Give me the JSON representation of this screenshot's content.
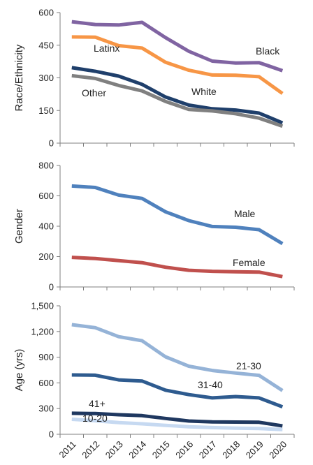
{
  "chart_data": [
    {
      "type": "line",
      "title": "",
      "xlabel": "",
      "ylabel": "Race/Ethnicity",
      "ylim": [
        0,
        600
      ],
      "yticks": [
        0,
        150,
        300,
        450,
        600
      ],
      "ytick_labels": [
        "0",
        "150",
        "300",
        "450",
        "600"
      ],
      "categories": [
        "2011",
        "2012",
        "2013",
        "2014",
        "2015",
        "2016",
        "2017",
        "2018",
        "2019",
        "2020"
      ],
      "series": [
        {
          "name": "Black",
          "color": "#8064a2",
          "values": [
            558,
            545,
            543,
            555,
            485,
            422,
            377,
            368,
            370,
            333
          ]
        },
        {
          "name": "Latinx",
          "color": "#f79646",
          "values": [
            488,
            487,
            448,
            437,
            372,
            335,
            313,
            312,
            305,
            228
          ]
        },
        {
          "name": "White",
          "color": "#1f3f6b",
          "values": [
            347,
            330,
            308,
            270,
            212,
            175,
            158,
            152,
            138,
            93
          ]
        },
        {
          "name": "Other",
          "color": "#808080",
          "values": [
            310,
            297,
            265,
            240,
            192,
            155,
            148,
            135,
            115,
            78
          ]
        }
      ],
      "grid": false,
      "legend": "none"
    },
    {
      "type": "line",
      "title": "",
      "xlabel": "",
      "ylabel": "Gender",
      "ylim": [
        0,
        800
      ],
      "yticks": [
        0,
        200,
        400,
        600,
        800
      ],
      "ytick_labels": [
        "0",
        "200",
        "400",
        "600",
        "800"
      ],
      "categories": [
        "2011",
        "2012",
        "2013",
        "2014",
        "2015",
        "2016",
        "2017",
        "2018",
        "2019",
        "2020"
      ],
      "series": [
        {
          "name": "Male",
          "color": "#4f81bd",
          "values": [
            665,
            655,
            605,
            583,
            495,
            437,
            398,
            393,
            377,
            285
          ]
        },
        {
          "name": "Female",
          "color": "#c0504d",
          "values": [
            195,
            187,
            174,
            160,
            130,
            110,
            103,
            100,
            98,
            68
          ]
        }
      ],
      "grid": false,
      "legend": "none"
    },
    {
      "type": "line",
      "title": "",
      "xlabel": "",
      "ylabel": "Age (yrs)",
      "ylim": [
        0,
        1500
      ],
      "yticks": [
        0,
        300,
        600,
        900,
        1200,
        1500
      ],
      "ytick_labels": [
        "0",
        "300",
        "600",
        "900",
        "1,200",
        "1,500"
      ],
      "categories": [
        "2011",
        "2012",
        "2013",
        "2014",
        "2015",
        "2016",
        "2017",
        "2018",
        "2019",
        "2020"
      ],
      "series": [
        {
          "name": "21-30",
          "color": "#95b3d7",
          "values": [
            1280,
            1245,
            1140,
            1092,
            905,
            795,
            745,
            715,
            688,
            510
          ]
        },
        {
          "name": "31-40",
          "color": "#2e5b8f",
          "values": [
            693,
            690,
            635,
            622,
            515,
            463,
            425,
            440,
            425,
            320
          ]
        },
        {
          "name": "41+",
          "color": "#1f3860",
          "values": [
            245,
            242,
            228,
            218,
            185,
            155,
            145,
            143,
            140,
            98
          ]
        },
        {
          "name": "10-20",
          "color": "#c6d9f1",
          "values": [
            175,
            158,
            137,
            122,
            104,
            88,
            78,
            72,
            67,
            55
          ]
        }
      ],
      "grid": false,
      "legend": "none"
    }
  ]
}
